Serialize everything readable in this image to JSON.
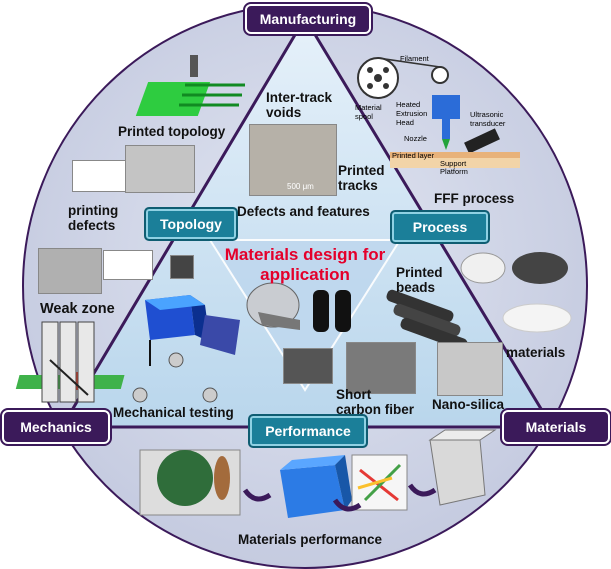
{
  "diagram": {
    "corners": {
      "top": "Manufacturing",
      "left": "Mechanics",
      "right": "Materials"
    },
    "midpoints": {
      "left": "Topology",
      "right": "Process",
      "bottom": "Performance"
    },
    "center_title": "Materials design for application",
    "labels": {
      "inter_track_voids": "Inter-track voids",
      "printed_tracks": "Printed tracks",
      "defects_features": "Defects and features",
      "printed_topology": "Printed topology",
      "printing_defects": "printing defects",
      "weak_zone": "Weak zone",
      "mechanical_testing": "Mechanical testing",
      "fff_process": "FFF process",
      "printed_beads": "Printed beads",
      "materials_small": "materials",
      "short_carbon_fiber": "Short carbon fiber",
      "nano_silica": "Nano-silica",
      "materials_performance": "Materials performance",
      "scale_bar": "500 μm"
    },
    "fff_schematic": {
      "filament": "Filament",
      "material_spool": "Material spool",
      "heated_head": "Heated Extrusion Head",
      "ultrasonic": "Ultrasonic transducer",
      "nozzle": "Nozzle",
      "printed_layer": "Printed layer",
      "support_platform": "Support Platform"
    },
    "colors": {
      "outer_circle": "#cdd3e6",
      "triangle": "#d4e6f4",
      "corner_box": "#3b1a5a",
      "mid_box": "#1b7f99",
      "title": "#e4002b"
    }
  }
}
